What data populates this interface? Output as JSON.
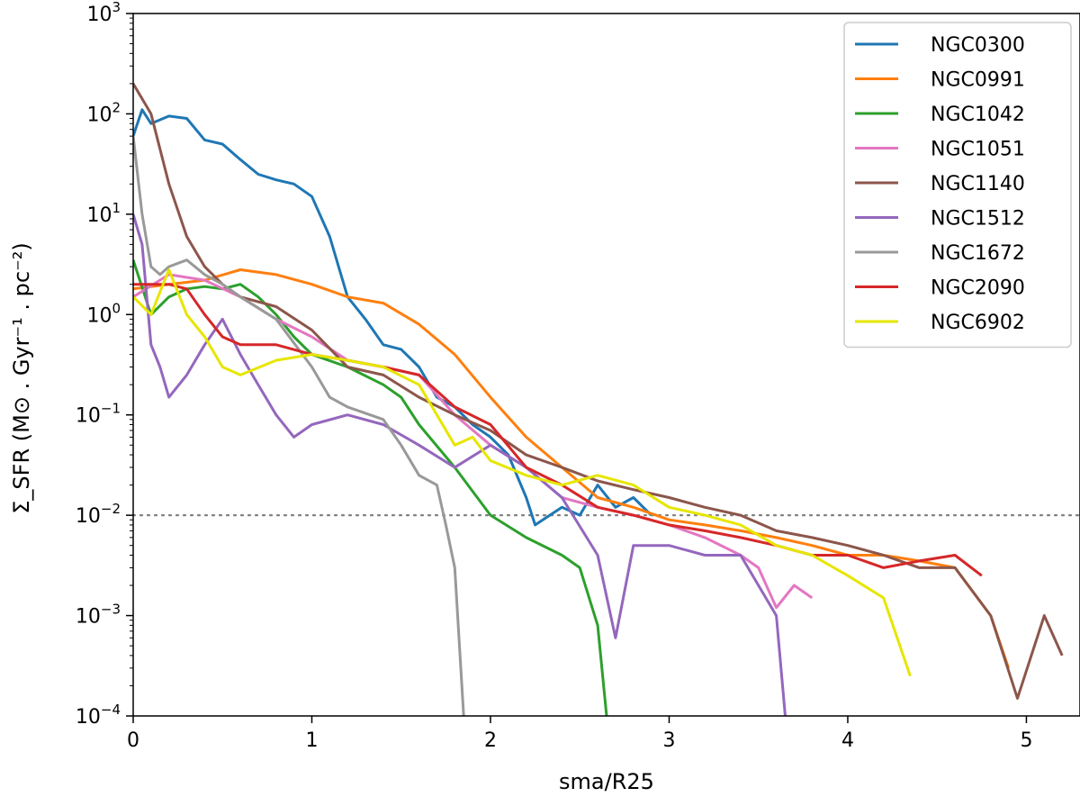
{
  "chart_data": {
    "type": "line",
    "xlabel": "sma/R25",
    "ylabel": "Σ_SFR (M⊙ . Gyr⁻¹ . pc⁻²)",
    "xlim": [
      0,
      5.3
    ],
    "ylim": [
      0.0001,
      1000
    ],
    "yscale": "log",
    "x_ticks": [
      "0",
      "1",
      "2",
      "3",
      "4",
      "5"
    ],
    "y_ticks": [
      {
        "base": "10",
        "exp": "−4",
        "value": 0.0001
      },
      {
        "base": "10",
        "exp": "−3",
        "value": 0.001
      },
      {
        "base": "10",
        "exp": "−2",
        "value": 0.01
      },
      {
        "base": "10",
        "exp": "−1",
        "value": 0.1
      },
      {
        "base": "10",
        "exp": "0",
        "value": 1
      },
      {
        "base": "10",
        "exp": "1",
        "value": 10
      },
      {
        "base": "10",
        "exp": "2",
        "value": 100
      },
      {
        "base": "10",
        "exp": "3",
        "value": 1000
      }
    ],
    "legend_position": "upper-right",
    "reference_line": {
      "y": 0.01,
      "style": "dotted",
      "color": "#808080"
    },
    "series": [
      {
        "name": "NGC0300",
        "color": "#1f77b4",
        "x": [
          0,
          0.05,
          0.1,
          0.2,
          0.3,
          0.4,
          0.5,
          0.6,
          0.7,
          0.8,
          0.9,
          1.0,
          1.1,
          1.2,
          1.3,
          1.4,
          1.5,
          1.6,
          1.7,
          1.8,
          1.9,
          2.0,
          2.1,
          2.2,
          2.25,
          2.4,
          2.5,
          2.6,
          2.7,
          2.8,
          2.9
        ],
        "y": [
          60,
          110,
          80,
          95,
          90,
          55,
          50,
          35,
          25,
          22,
          20,
          15,
          6,
          1.5,
          0.9,
          0.5,
          0.45,
          0.3,
          0.15,
          0.12,
          0.08,
          0.06,
          0.04,
          0.015,
          0.008,
          0.012,
          0.01,
          0.02,
          0.012,
          0.015,
          0.01
        ]
      },
      {
        "name": "NGC0991",
        "color": "#ff7f0e",
        "x": [
          0,
          0.2,
          0.4,
          0.6,
          0.8,
          1.0,
          1.2,
          1.4,
          1.6,
          1.8,
          2.0,
          2.2,
          2.4,
          2.6,
          2.8,
          3.0,
          3.2,
          3.4,
          3.6,
          3.8,
          4.0,
          4.2,
          4.4,
          4.6,
          4.8,
          4.9
        ],
        "y": [
          1.8,
          2.0,
          2.2,
          2.8,
          2.5,
          2.0,
          1.5,
          1.3,
          0.8,
          0.4,
          0.15,
          0.06,
          0.03,
          0.015,
          0.012,
          0.009,
          0.008,
          0.007,
          0.006,
          0.005,
          0.004,
          0.004,
          0.0035,
          0.003,
          0.001,
          0.0003
        ]
      },
      {
        "name": "NGC1042",
        "color": "#2ca02c",
        "x": [
          0,
          0.1,
          0.2,
          0.3,
          0.4,
          0.5,
          0.6,
          0.7,
          0.8,
          0.9,
          1.0,
          1.2,
          1.4,
          1.5,
          1.6,
          1.8,
          2.0,
          2.2,
          2.4,
          2.5,
          2.6,
          2.65
        ],
        "y": [
          3.5,
          1.0,
          1.5,
          1.8,
          1.9,
          1.8,
          2.0,
          1.5,
          1.0,
          0.6,
          0.4,
          0.3,
          0.2,
          0.15,
          0.08,
          0.03,
          0.01,
          0.006,
          0.004,
          0.003,
          0.0008,
          0.0001
        ]
      },
      {
        "name": "NGC1051",
        "color": "#e377c2",
        "x": [
          0,
          0.2,
          0.4,
          0.6,
          0.8,
          1.0,
          1.2,
          1.4,
          1.6,
          1.8,
          2.0,
          2.2,
          2.4,
          2.6,
          2.8,
          3.0,
          3.2,
          3.4,
          3.5,
          3.6,
          3.7,
          3.8
        ],
        "y": [
          1.5,
          2.5,
          2.2,
          1.5,
          0.9,
          0.6,
          0.35,
          0.3,
          0.25,
          0.1,
          0.05,
          0.03,
          0.015,
          0.012,
          0.01,
          0.008,
          0.006,
          0.004,
          0.003,
          0.0012,
          0.002,
          0.0015
        ]
      },
      {
        "name": "NGC1140",
        "color": "#8c564b",
        "x": [
          0,
          0.1,
          0.2,
          0.3,
          0.4,
          0.5,
          0.6,
          0.8,
          1.0,
          1.2,
          1.4,
          1.6,
          1.8,
          2.0,
          2.2,
          2.4,
          2.6,
          2.8,
          3.0,
          3.2,
          3.4,
          3.6,
          3.8,
          4.0,
          4.2,
          4.4,
          4.6,
          4.8,
          4.95,
          5.1,
          5.2
        ],
        "y": [
          200,
          100,
          20,
          6,
          3,
          2,
          1.5,
          1.2,
          0.7,
          0.3,
          0.25,
          0.15,
          0.1,
          0.07,
          0.04,
          0.03,
          0.022,
          0.018,
          0.015,
          0.012,
          0.01,
          0.007,
          0.006,
          0.005,
          0.004,
          0.003,
          0.003,
          0.001,
          0.00015,
          0.001,
          0.0004
        ]
      },
      {
        "name": "NGC1512",
        "color": "#9467bd",
        "x": [
          0,
          0.05,
          0.1,
          0.15,
          0.2,
          0.3,
          0.4,
          0.5,
          0.6,
          0.7,
          0.8,
          0.9,
          1.0,
          1.2,
          1.4,
          1.6,
          1.8,
          2.0,
          2.2,
          2.4,
          2.6,
          2.7,
          2.8,
          3.0,
          3.2,
          3.4,
          3.6,
          3.65
        ],
        "y": [
          10,
          5,
          0.5,
          0.3,
          0.15,
          0.25,
          0.5,
          0.9,
          0.4,
          0.2,
          0.1,
          0.06,
          0.08,
          0.1,
          0.08,
          0.05,
          0.03,
          0.05,
          0.03,
          0.015,
          0.004,
          0.0006,
          0.005,
          0.005,
          0.004,
          0.004,
          0.001,
          0.0001
        ]
      },
      {
        "name": "NGC1672",
        "color": "#999999",
        "x": [
          0,
          0.05,
          0.1,
          0.15,
          0.2,
          0.3,
          0.4,
          0.5,
          0.6,
          0.8,
          1.0,
          1.1,
          1.2,
          1.4,
          1.5,
          1.6,
          1.7,
          1.75,
          1.8,
          1.85
        ],
        "y": [
          60,
          10,
          3,
          2.5,
          3,
          3.5,
          2.5,
          2,
          1.5,
          0.9,
          0.3,
          0.15,
          0.12,
          0.09,
          0.05,
          0.025,
          0.02,
          0.008,
          0.003,
          0.0001
        ]
      },
      {
        "name": "NGC2090",
        "color": "#d62728",
        "x": [
          0,
          0.2,
          0.3,
          0.4,
          0.5,
          0.6,
          0.8,
          1.0,
          1.2,
          1.4,
          1.6,
          1.8,
          2.0,
          2.2,
          2.4,
          2.6,
          2.8,
          3.0,
          3.2,
          3.4,
          3.6,
          3.8,
          4.0,
          4.2,
          4.4,
          4.6,
          4.75
        ],
        "y": [
          2.0,
          2.0,
          1.8,
          1.0,
          0.6,
          0.5,
          0.5,
          0.4,
          0.35,
          0.3,
          0.25,
          0.12,
          0.08,
          0.03,
          0.02,
          0.012,
          0.01,
          0.008,
          0.007,
          0.006,
          0.005,
          0.004,
          0.004,
          0.003,
          0.0035,
          0.004,
          0.0025
        ]
      },
      {
        "name": "NGC6902",
        "color": "#e6e600",
        "x": [
          0,
          0.1,
          0.2,
          0.3,
          0.4,
          0.5,
          0.6,
          0.8,
          1.0,
          1.2,
          1.4,
          1.6,
          1.8,
          1.9,
          2.0,
          2.2,
          2.4,
          2.6,
          2.8,
          3.0,
          3.2,
          3.4,
          3.6,
          3.8,
          4.0,
          4.2,
          4.35
        ],
        "y": [
          1.5,
          1.0,
          2.8,
          1.0,
          0.6,
          0.3,
          0.25,
          0.35,
          0.4,
          0.35,
          0.3,
          0.2,
          0.05,
          0.06,
          0.035,
          0.025,
          0.02,
          0.025,
          0.02,
          0.012,
          0.01,
          0.008,
          0.005,
          0.004,
          0.0025,
          0.0015,
          0.00025
        ]
      }
    ]
  }
}
